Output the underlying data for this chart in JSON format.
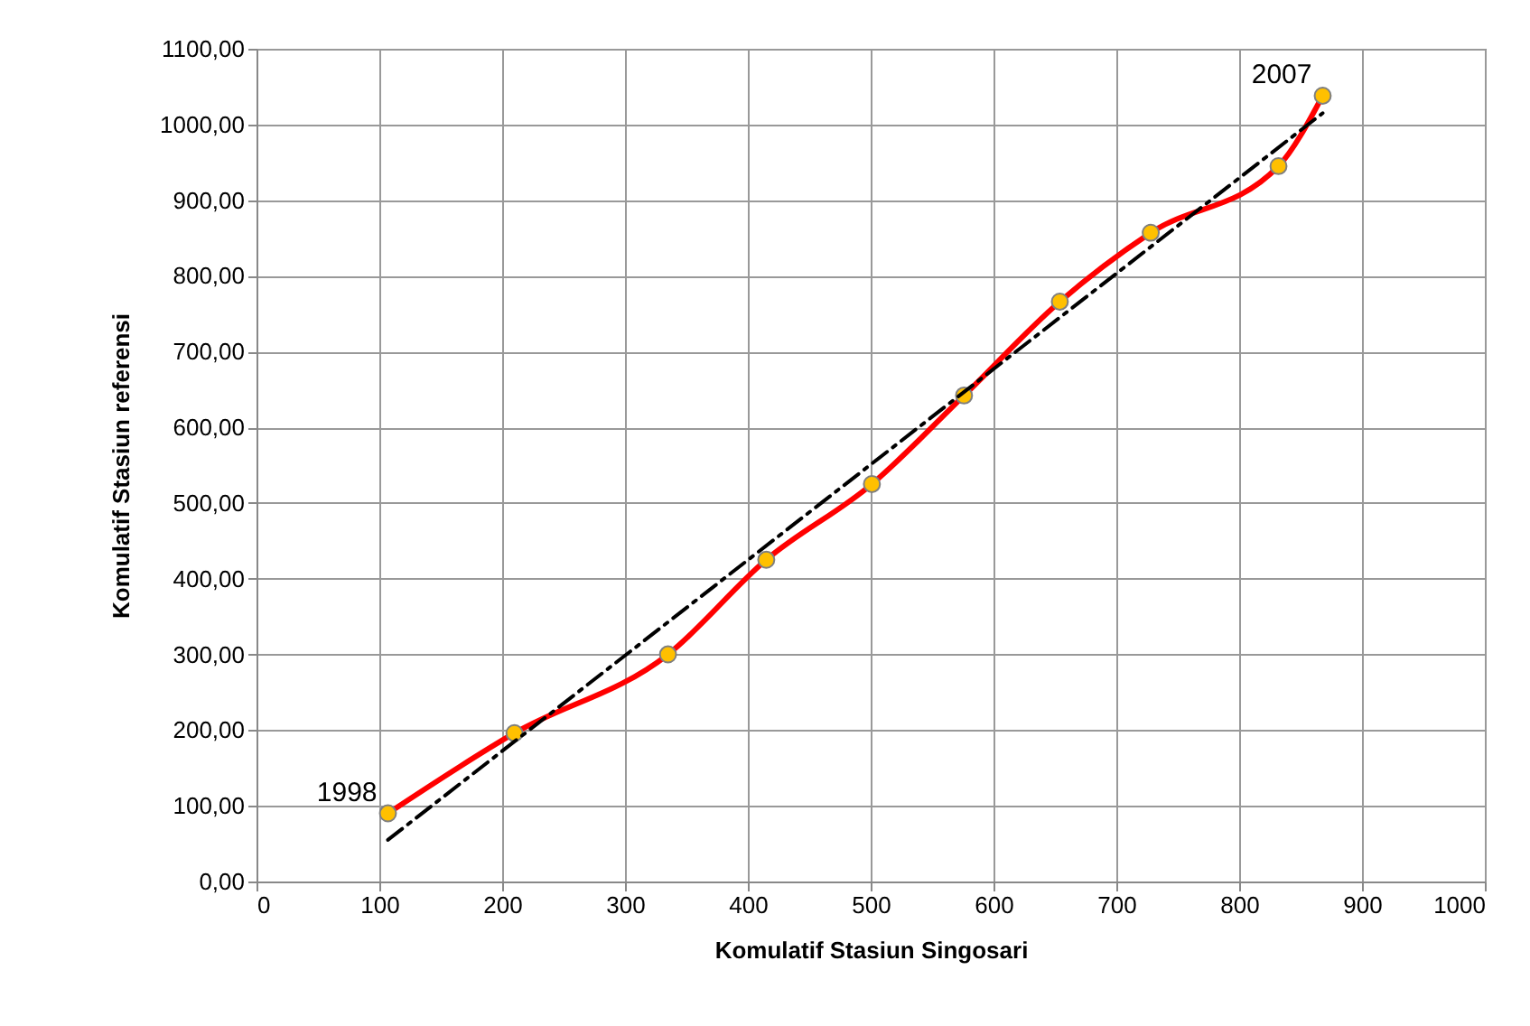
{
  "chart_data": {
    "type": "line",
    "xlabel": "Komulatif Stasiun Singosari",
    "ylabel": "Komulatif Stasiun referensi",
    "xlim": [
      0,
      1000
    ],
    "xticks": [
      0,
      100,
      200,
      300,
      400,
      500,
      600,
      700,
      800,
      900,
      1000
    ],
    "ylim": [
      0,
      1100
    ],
    "yticks": [
      {
        "value": 0,
        "label": "0,00"
      },
      {
        "value": 100,
        "label": "100,00"
      },
      {
        "value": 200,
        "label": "200,00"
      },
      {
        "value": 300,
        "label": "300,00"
      },
      {
        "value": 400,
        "label": "400,00"
      },
      {
        "value": 500,
        "label": "500,00"
      },
      {
        "value": 600,
        "label": "600,00"
      },
      {
        "value": 700,
        "label": "700,00"
      },
      {
        "value": 800,
        "label": "800,00"
      },
      {
        "value": 900,
        "label": "900,00"
      },
      {
        "value": 1000,
        "label": "1000,00"
      },
      {
        "value": 1100,
        "label": "1100,00"
      }
    ],
    "grid": true,
    "series": [
      {
        "color": "#ff0000",
        "marker": "none",
        "line_style": "solid",
        "x": [
          107,
          210,
          335,
          415,
          501,
          576,
          654,
          728,
          832,
          868
        ],
        "values": [
          90,
          196,
          300,
          425,
          525,
          642,
          766,
          857,
          945,
          1038
        ]
      },
      {
        "type": "scatter",
        "color": "#ffc000",
        "marker": "circle",
        "x": [
          107,
          210,
          335,
          415,
          501,
          576,
          654,
          728,
          832,
          868
        ],
        "values": [
          90,
          196,
          300,
          425,
          525,
          642,
          766,
          857,
          945,
          1038
        ]
      },
      {
        "color": "#000000",
        "marker": "none",
        "line_style": "dashed",
        "x": [
          107,
          868
        ],
        "values": [
          55,
          1015
        ]
      }
    ],
    "annotations": [
      {
        "text": "1998",
        "x": 107,
        "y": 90
      },
      {
        "text": "2007",
        "x": 868,
        "y": 1038
      }
    ]
  }
}
